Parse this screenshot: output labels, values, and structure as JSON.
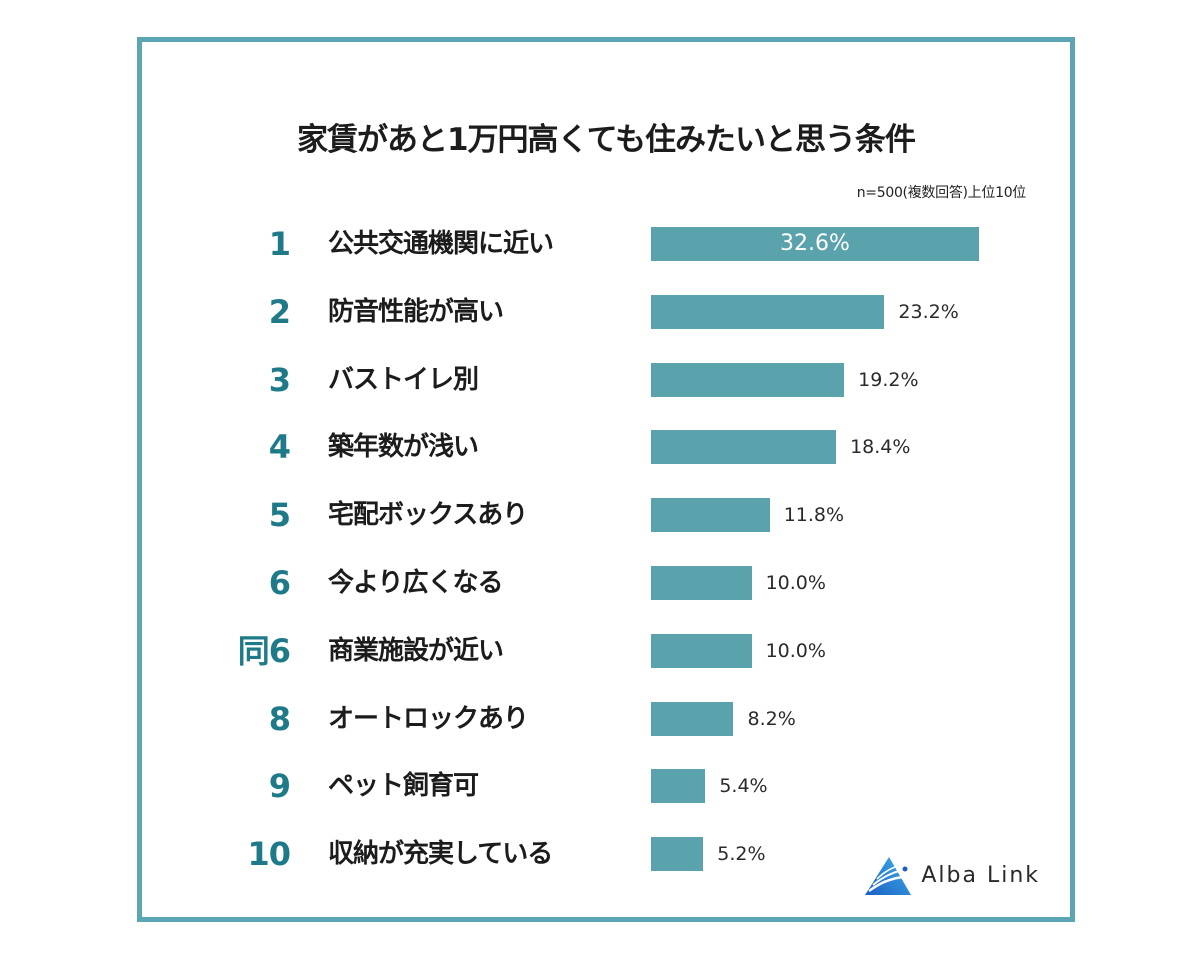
{
  "title": "家賃があと1万円高くても住みたいと思う条件",
  "subtitle": "n=500(複数回答)上位10位",
  "brand": {
    "name": "Alba Link",
    "icon": "alba-link-triangle-logo"
  },
  "colors": {
    "bar": "#5BA3AC",
    "rank": "#1E7A88",
    "border": "#5BA6B2"
  },
  "rows": [
    {
      "rank": "1",
      "label": "公共交通機関に近い",
      "value": 32.6,
      "value_label": "32.6%"
    },
    {
      "rank": "2",
      "label": "防音性能が高い",
      "value": 23.2,
      "value_label": "23.2%"
    },
    {
      "rank": "3",
      "label": "バストイレ別",
      "value": 19.2,
      "value_label": "19.2%"
    },
    {
      "rank": "4",
      "label": "築年数が浅い",
      "value": 18.4,
      "value_label": "18.4%"
    },
    {
      "rank": "5",
      "label": "宅配ボックスあり",
      "value": 11.8,
      "value_label": "11.8%"
    },
    {
      "rank": "6",
      "label": "今より広くなる",
      "value": 10.0,
      "value_label": "10.0%"
    },
    {
      "rank": "同6",
      "label": "商業施設が近い",
      "value": 10.0,
      "value_label": "10.0%"
    },
    {
      "rank": "8",
      "label": "オートロックあり",
      "value": 8.2,
      "value_label": "8.2%"
    },
    {
      "rank": "9",
      "label": "ペット飼育可",
      "value": 5.4,
      "value_label": "5.4%"
    },
    {
      "rank": "10",
      "label": "収納が充実している",
      "value": 5.2,
      "value_label": "5.2%"
    }
  ],
  "chart_data": {
    "type": "bar",
    "orientation": "horizontal",
    "title": "家賃があと1万円高くても住みたいと思う条件",
    "subtitle": "n=500(複数回答)上位10位",
    "categories": [
      "公共交通機関に近い",
      "防音性能が高い",
      "バストイレ別",
      "築年数が浅い",
      "宅配ボックスあり",
      "今より広くなる",
      "商業施設が近い",
      "オートロックあり",
      "ペット飼育可",
      "収納が充実している"
    ],
    "ranks": [
      "1",
      "2",
      "3",
      "4",
      "5",
      "6",
      "同6",
      "8",
      "9",
      "10"
    ],
    "values": [
      32.6,
      23.2,
      19.2,
      18.4,
      11.8,
      10.0,
      10.0,
      8.2,
      5.4,
      5.2
    ],
    "unit": "%",
    "xlabel": "",
    "ylabel": "",
    "grid": false,
    "legend": null
  }
}
